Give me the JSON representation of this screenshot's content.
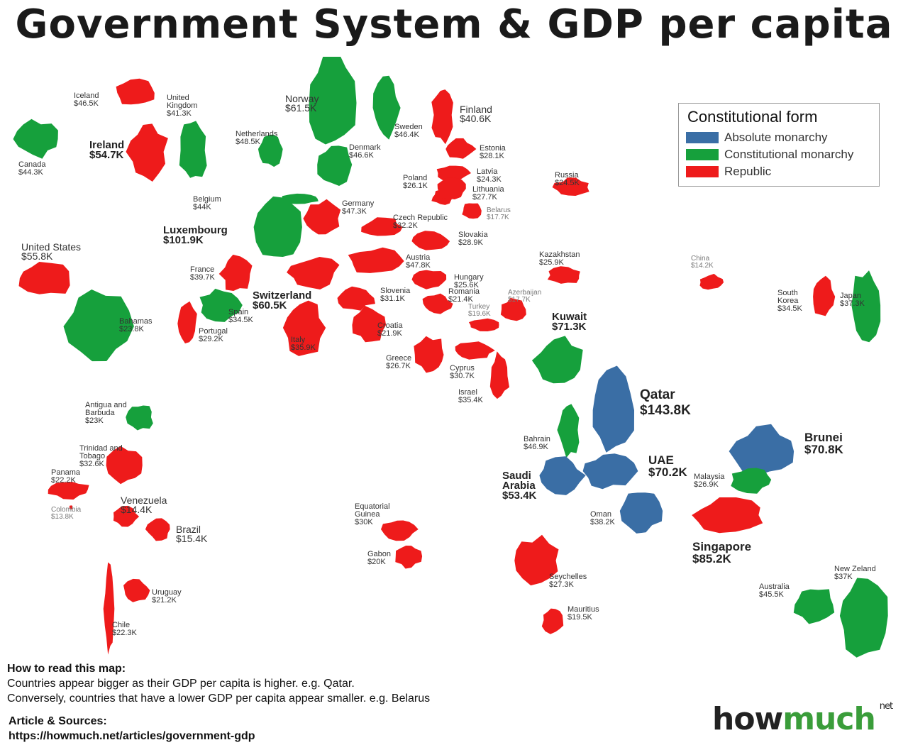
{
  "title": "Government System & GDP per capita",
  "legend": {
    "title": "Constitutional form",
    "items": [
      {
        "label": "Absolute monarchy",
        "color": "#3a6ea5"
      },
      {
        "label": "Constitutional monarchy",
        "color": "#16a03c"
      },
      {
        "label": "Republic",
        "color": "#ee1b1b"
      }
    ]
  },
  "countries": [
    {
      "name": "Iceland",
      "gdp": "$46.5K",
      "form": "Republic"
    },
    {
      "name": "United Kingdom",
      "gdp": "$41.3K",
      "form": "Constitutional monarchy"
    },
    {
      "name": "Norway",
      "gdp": "$61.5K",
      "form": "Constitutional monarchy"
    },
    {
      "name": "Finland",
      "gdp": "$40.6K",
      "form": "Republic"
    },
    {
      "name": "Canada",
      "gdp": "$44.3K",
      "form": "Constitutional monarchy"
    },
    {
      "name": "Ireland",
      "gdp": "$54.7K",
      "form": "Republic"
    },
    {
      "name": "Netherlands",
      "gdp": "$48.5K",
      "form": "Constitutional monarchy"
    },
    {
      "name": "Sweden",
      "gdp": "$46.4K",
      "form": "Constitutional monarchy"
    },
    {
      "name": "Denmark",
      "gdp": "$46.6K",
      "form": "Constitutional monarchy"
    },
    {
      "name": "Estonia",
      "gdp": "$28.1K",
      "form": "Republic"
    },
    {
      "name": "Poland",
      "gdp": "$26.1K",
      "form": "Republic"
    },
    {
      "name": "Latvia",
      "gdp": "$24.3K",
      "form": "Republic"
    },
    {
      "name": "Lithuania",
      "gdp": "$27.7K",
      "form": "Republic"
    },
    {
      "name": "Belarus",
      "gdp": "$17.7K",
      "form": "Republic"
    },
    {
      "name": "Russia",
      "gdp": "$24.5K",
      "form": "Republic"
    },
    {
      "name": "Belgium",
      "gdp": "$44K",
      "form": "Constitutional monarchy"
    },
    {
      "name": "Germany",
      "gdp": "$47.3K",
      "form": "Republic"
    },
    {
      "name": "Czech Republic",
      "gdp": "$32.2K",
      "form": "Republic"
    },
    {
      "name": "Luxembourg",
      "gdp": "$101.9K",
      "form": "Constitutional monarchy"
    },
    {
      "name": "Slovakia",
      "gdp": "$28.9K",
      "form": "Republic"
    },
    {
      "name": "United States",
      "gdp": "$55.8K",
      "form": "Republic"
    },
    {
      "name": "Austria",
      "gdp": "$47.8K",
      "form": "Republic"
    },
    {
      "name": "Kazakhstan",
      "gdp": "$25.9K",
      "form": "Republic"
    },
    {
      "name": "China",
      "gdp": "$14.2K",
      "form": "Republic"
    },
    {
      "name": "France",
      "gdp": "$39.7K",
      "form": "Republic"
    },
    {
      "name": "Hungary",
      "gdp": "$25.6K",
      "form": "Republic"
    },
    {
      "name": "Switzerland",
      "gdp": "$60.5K",
      "form": "Republic"
    },
    {
      "name": "Slovenia",
      "gdp": "$31.1K",
      "form": "Republic"
    },
    {
      "name": "Romania",
      "gdp": "$21.4K",
      "form": "Republic"
    },
    {
      "name": "Azerbaijan",
      "gdp": "$17.7K",
      "form": "Republic"
    },
    {
      "name": "South Korea",
      "gdp": "$34.5K",
      "form": "Republic"
    },
    {
      "name": "Japan",
      "gdp": "$37.3K",
      "form": "Constitutional monarchy"
    },
    {
      "name": "Spain",
      "gdp": "$34.5K",
      "form": "Constitutional monarchy"
    },
    {
      "name": "Turkey",
      "gdp": "$19.6K",
      "form": "Republic"
    },
    {
      "name": "Bahamas",
      "gdp": "$23.8K",
      "form": "Constitutional monarchy"
    },
    {
      "name": "Kuwait",
      "gdp": "$71.3K",
      "form": "Constitutional monarchy"
    },
    {
      "name": "Croatia",
      "gdp": "$21.9K",
      "form": "Republic"
    },
    {
      "name": "Portugal",
      "gdp": "$29.2K",
      "form": "Republic"
    },
    {
      "name": "Italy",
      "gdp": "$35.9K",
      "form": "Republic"
    },
    {
      "name": "Greece",
      "gdp": "$26.7K",
      "form": "Republic"
    },
    {
      "name": "Cyprus",
      "gdp": "$30.7K",
      "form": "Republic"
    },
    {
      "name": "Israel",
      "gdp": "$35.4K",
      "form": "Republic"
    },
    {
      "name": "Qatar",
      "gdp": "$143.8K",
      "form": "Absolute monarchy"
    },
    {
      "name": "Antigua and Barbuda",
      "gdp": "$23K",
      "form": "Constitutional monarchy"
    },
    {
      "name": "Brunei",
      "gdp": "$70.8K",
      "form": "Absolute monarchy"
    },
    {
      "name": "Bahrain",
      "gdp": "$46.9K",
      "form": "Constitutional monarchy"
    },
    {
      "name": "Trinidad and Tobago",
      "gdp": "$32.6K",
      "form": "Republic"
    },
    {
      "name": "UAE",
      "gdp": "$70.2K",
      "form": "Absolute monarchy"
    },
    {
      "name": "Panama",
      "gdp": "$22.2K",
      "form": "Republic"
    },
    {
      "name": "Saudi Arabia",
      "gdp": "$53.4K",
      "form": "Absolute monarchy"
    },
    {
      "name": "Malaysia",
      "gdp": "$26.9K",
      "form": "Constitutional monarchy"
    },
    {
      "name": "Venezuela",
      "gdp": "$14.4K",
      "form": "Republic"
    },
    {
      "name": "Colombia",
      "gdp": "$13.8K",
      "form": "Republic"
    },
    {
      "name": "Equatorial Guinea",
      "gdp": "$30K",
      "form": "Republic"
    },
    {
      "name": "Brazil",
      "gdp": "$15.4K",
      "form": "Republic"
    },
    {
      "name": "Oman",
      "gdp": "$38.2K",
      "form": "Absolute monarchy"
    },
    {
      "name": "Singapore",
      "gdp": "$85.2K",
      "form": "Republic"
    },
    {
      "name": "Gabon",
      "gdp": "$20K",
      "form": "Republic"
    },
    {
      "name": "Seychelles",
      "gdp": "$27.3K",
      "form": "Republic"
    },
    {
      "name": "New Zeland",
      "gdp": "$37K",
      "form": "Constitutional monarchy"
    },
    {
      "name": "Australia",
      "gdp": "$45.5K",
      "form": "Constitutional monarchy"
    },
    {
      "name": "Uruguay",
      "gdp": "$21.2K",
      "form": "Republic"
    },
    {
      "name": "Mauritius",
      "gdp": "$19.5K",
      "form": "Republic"
    },
    {
      "name": "Chile",
      "gdp": "$22.3K",
      "form": "Republic"
    }
  ],
  "howto": {
    "heading": "How to read this map:",
    "line1": "Countries appear bigger as their GDP per capita is higher. e.g. Qatar.",
    "line2": "Conversely, countries that have a lower GDP per capita appear smaller. e.g. Belarus"
  },
  "sources": {
    "heading": "Article & Sources:",
    "url": "https://howmuch.net/articles/government-gdp"
  },
  "logo": {
    "how": "how",
    "much": "much",
    "net": "net"
  }
}
